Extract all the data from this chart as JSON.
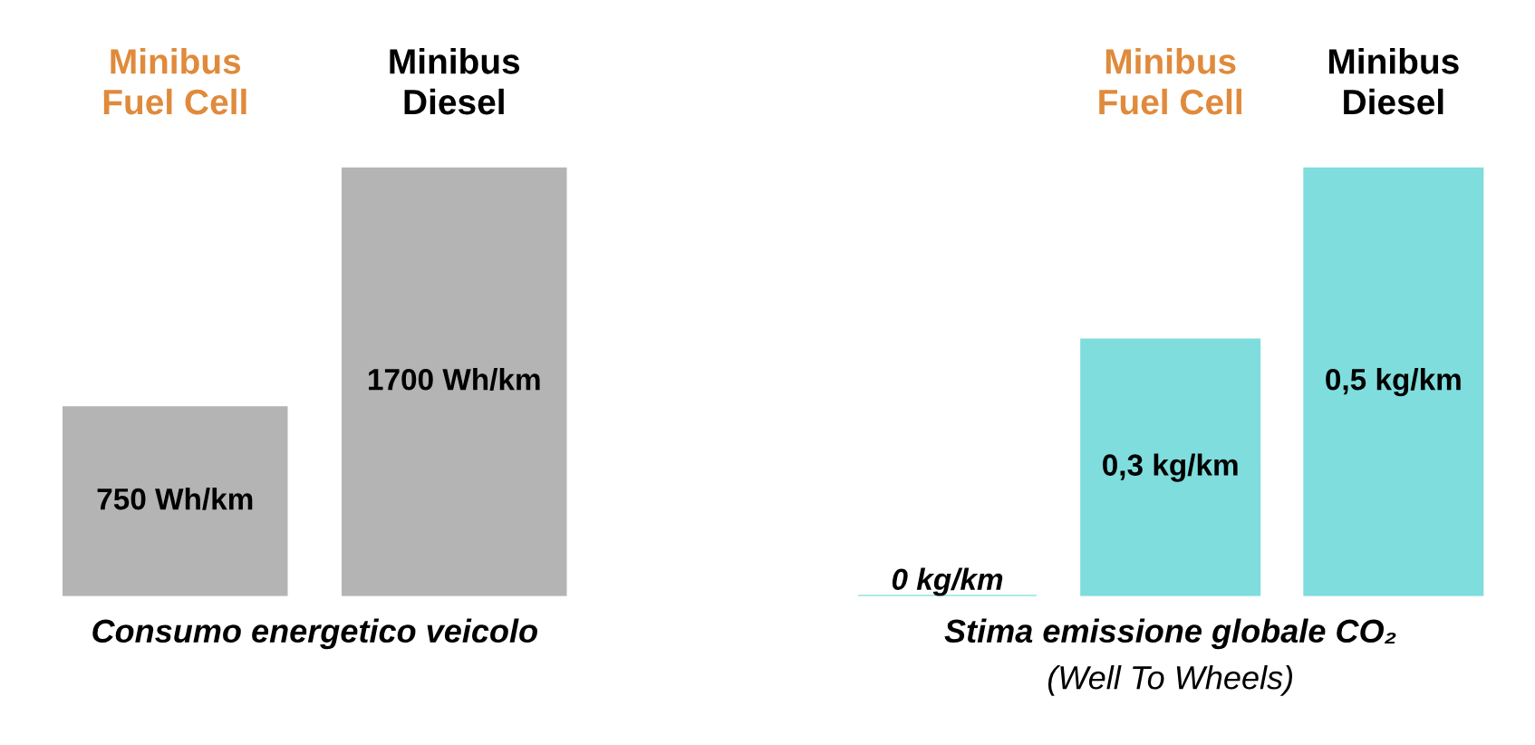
{
  "chart_data": [
    {
      "type": "bar",
      "categories": [
        "Minibus\nFuel Cell",
        "Minibus\nDiesel"
      ],
      "values": [
        750,
        1700
      ],
      "value_labels": [
        "750 Wh/km",
        "1700 Wh/km"
      ],
      "colors": [
        "#b4b4b4",
        "#b4b4b4"
      ],
      "xlabel": "Consumo energetico veicolo"
    },
    {
      "type": "bar",
      "categories": [
        null,
        "Minibus\nFuel Cell",
        "Minibus\nDiesel"
      ],
      "values": [
        0,
        0.3,
        0.5
      ],
      "value_labels": [
        "0 kg/km",
        "0,3 kg/km",
        "0,5 kg/km"
      ],
      "colors": [
        "#5ed3d3",
        "#7fdddd",
        "#7fdddd"
      ],
      "xlabel": "Stima emissione globale CO₂",
      "annotations": [
        "(Well To Wheels)"
      ]
    }
  ]
}
